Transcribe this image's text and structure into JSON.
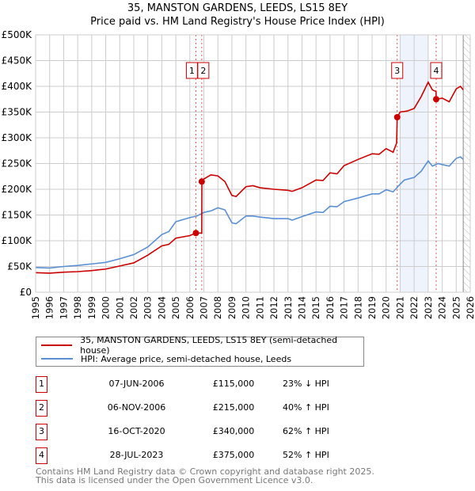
{
  "title": "35, MANSTON GARDENS, LEEDS, LS15 8EY",
  "subtitle": "Price paid vs. HM Land Registry's House Price Index (HPI)",
  "chart_data": {
    "type": "line",
    "xlim": [
      1995,
      2026
    ],
    "ylim": [
      0,
      500000
    ],
    "yticks": [
      {
        "v": 0,
        "label": "£0"
      },
      {
        "v": 50000,
        "label": "£50K"
      },
      {
        "v": 100000,
        "label": "£100K"
      },
      {
        "v": 150000,
        "label": "£150K"
      },
      {
        "v": 200000,
        "label": "£200K"
      },
      {
        "v": 250000,
        "label": "£250K"
      },
      {
        "v": 300000,
        "label": "£300K"
      },
      {
        "v": 350000,
        "label": "£350K"
      },
      {
        "v": 400000,
        "label": "£400K"
      },
      {
        "v": 450000,
        "label": "£450K"
      },
      {
        "v": 500000,
        "label": "£500K"
      }
    ],
    "xticks": [
      "1995",
      "1996",
      "1997",
      "1998",
      "1999",
      "2000",
      "2001",
      "2002",
      "2003",
      "2004",
      "2005",
      "2006",
      "2007",
      "2008",
      "2009",
      "2010",
      "2011",
      "2012",
      "2013",
      "2014",
      "2015",
      "2016",
      "2017",
      "2018",
      "2019",
      "2020",
      "2021",
      "2022",
      "2023",
      "2024",
      "2025",
      "2026"
    ],
    "shaded_range": [
      2021,
      2023
    ],
    "forecast_from": 2025.5,
    "series": [
      {
        "name": "35, MANSTON GARDENS, LEEDS, LS15 8EY (semi-detached house)",
        "color": "#cc0000",
        "x": [
          1995,
          1996,
          1997,
          1998,
          1999,
          2000,
          2001,
          2002,
          2003,
          2004,
          2004.5,
          2005,
          2006,
          2006.43,
          2006.85,
          2006.86,
          2007,
          2007.5,
          2008,
          2008.5,
          2009,
          2009.3,
          2010,
          2010.5,
          2011,
          2012,
          2013,
          2013.3,
          2014,
          2015,
          2015.5,
          2016,
          2016.5,
          2017,
          2018,
          2019,
          2019.5,
          2020,
          2020.5,
          2020.75,
          2020.79,
          2021,
          2021.5,
          2022,
          2022.5,
          2023,
          2023.3,
          2023.56,
          2023.57,
          2024,
          2024.5,
          2025,
          2025.3,
          2025.5
        ],
        "y": [
          38000,
          37000,
          39000,
          40000,
          42000,
          45000,
          51000,
          57000,
          72000,
          90000,
          93000,
          105000,
          110000,
          115000,
          115000,
          215000,
          220000,
          228000,
          226000,
          215000,
          188000,
          186000,
          205000,
          207000,
          203000,
          200000,
          198000,
          196000,
          203000,
          218000,
          217000,
          232000,
          230000,
          246000,
          258000,
          269000,
          268000,
          279000,
          272000,
          290000,
          340000,
          350000,
          352000,
          357000,
          380000,
          408000,
          393000,
          390000,
          375000,
          377000,
          370000,
          395000,
          400000,
          393000
        ]
      },
      {
        "name": "HPI: Average price, semi-detached house, Leeds",
        "color": "#5b8fd4",
        "x": [
          1995,
          1996,
          1997,
          1998,
          1999,
          2000,
          2001,
          2002,
          2003,
          2004,
          2004.5,
          2005,
          2006,
          2006.5,
          2007,
          2007.5,
          2008,
          2008.5,
          2009,
          2009.3,
          2010,
          2010.5,
          2011,
          2012,
          2013,
          2013.3,
          2014,
          2015,
          2015.5,
          2016,
          2016.5,
          2017,
          2018,
          2019,
          2019.5,
          2020,
          2020.5,
          2021,
          2021.3,
          2022,
          2022.5,
          2023,
          2023.3,
          2023.7,
          2024,
          2024.5,
          2025,
          2025.3,
          2025.5
        ],
        "y": [
          48000,
          47000,
          50000,
          52000,
          55000,
          58000,
          65000,
          73000,
          88000,
          112000,
          118000,
          137000,
          145000,
          148000,
          155000,
          158000,
          164000,
          160000,
          135000,
          133000,
          148000,
          148000,
          146000,
          143000,
          143000,
          140000,
          147000,
          156000,
          155000,
          167000,
          166000,
          176000,
          183000,
          191000,
          191000,
          199000,
          195000,
          210000,
          218000,
          223000,
          235000,
          255000,
          245000,
          250000,
          248000,
          245000,
          260000,
          263000,
          258000
        ]
      }
    ],
    "sales": [
      {
        "id": "1",
        "x": 2006.43,
        "y": 115000
      },
      {
        "id": "2",
        "x": 2006.85,
        "y": 215000
      },
      {
        "id": "3",
        "x": 2020.79,
        "y": 340000
      },
      {
        "id": "4",
        "x": 2023.57,
        "y": 375000
      }
    ]
  },
  "legend": [
    {
      "label": "35, MANSTON GARDENS, LEEDS, LS15 8EY (semi-detached house)",
      "color": "#cc0000"
    },
    {
      "label": "HPI: Average price, semi-detached house, Leeds",
      "color": "#5b8fd4"
    }
  ],
  "table": [
    {
      "id": "1",
      "date": "07-JUN-2006",
      "price": "£115,000",
      "hpi": "23% ↓ HPI"
    },
    {
      "id": "2",
      "date": "06-NOV-2006",
      "price": "£215,000",
      "hpi": "40% ↑ HPI"
    },
    {
      "id": "3",
      "date": "16-OCT-2020",
      "price": "£340,000",
      "hpi": "62% ↑ HPI"
    },
    {
      "id": "4",
      "date": "28-JUL-2023",
      "price": "£375,000",
      "hpi": "52% ↑ HPI"
    }
  ],
  "footer": [
    "Contains HM Land Registry data © Crown copyright and database right 2025.",
    "This data is licensed under the Open Government Licence v3.0."
  ]
}
